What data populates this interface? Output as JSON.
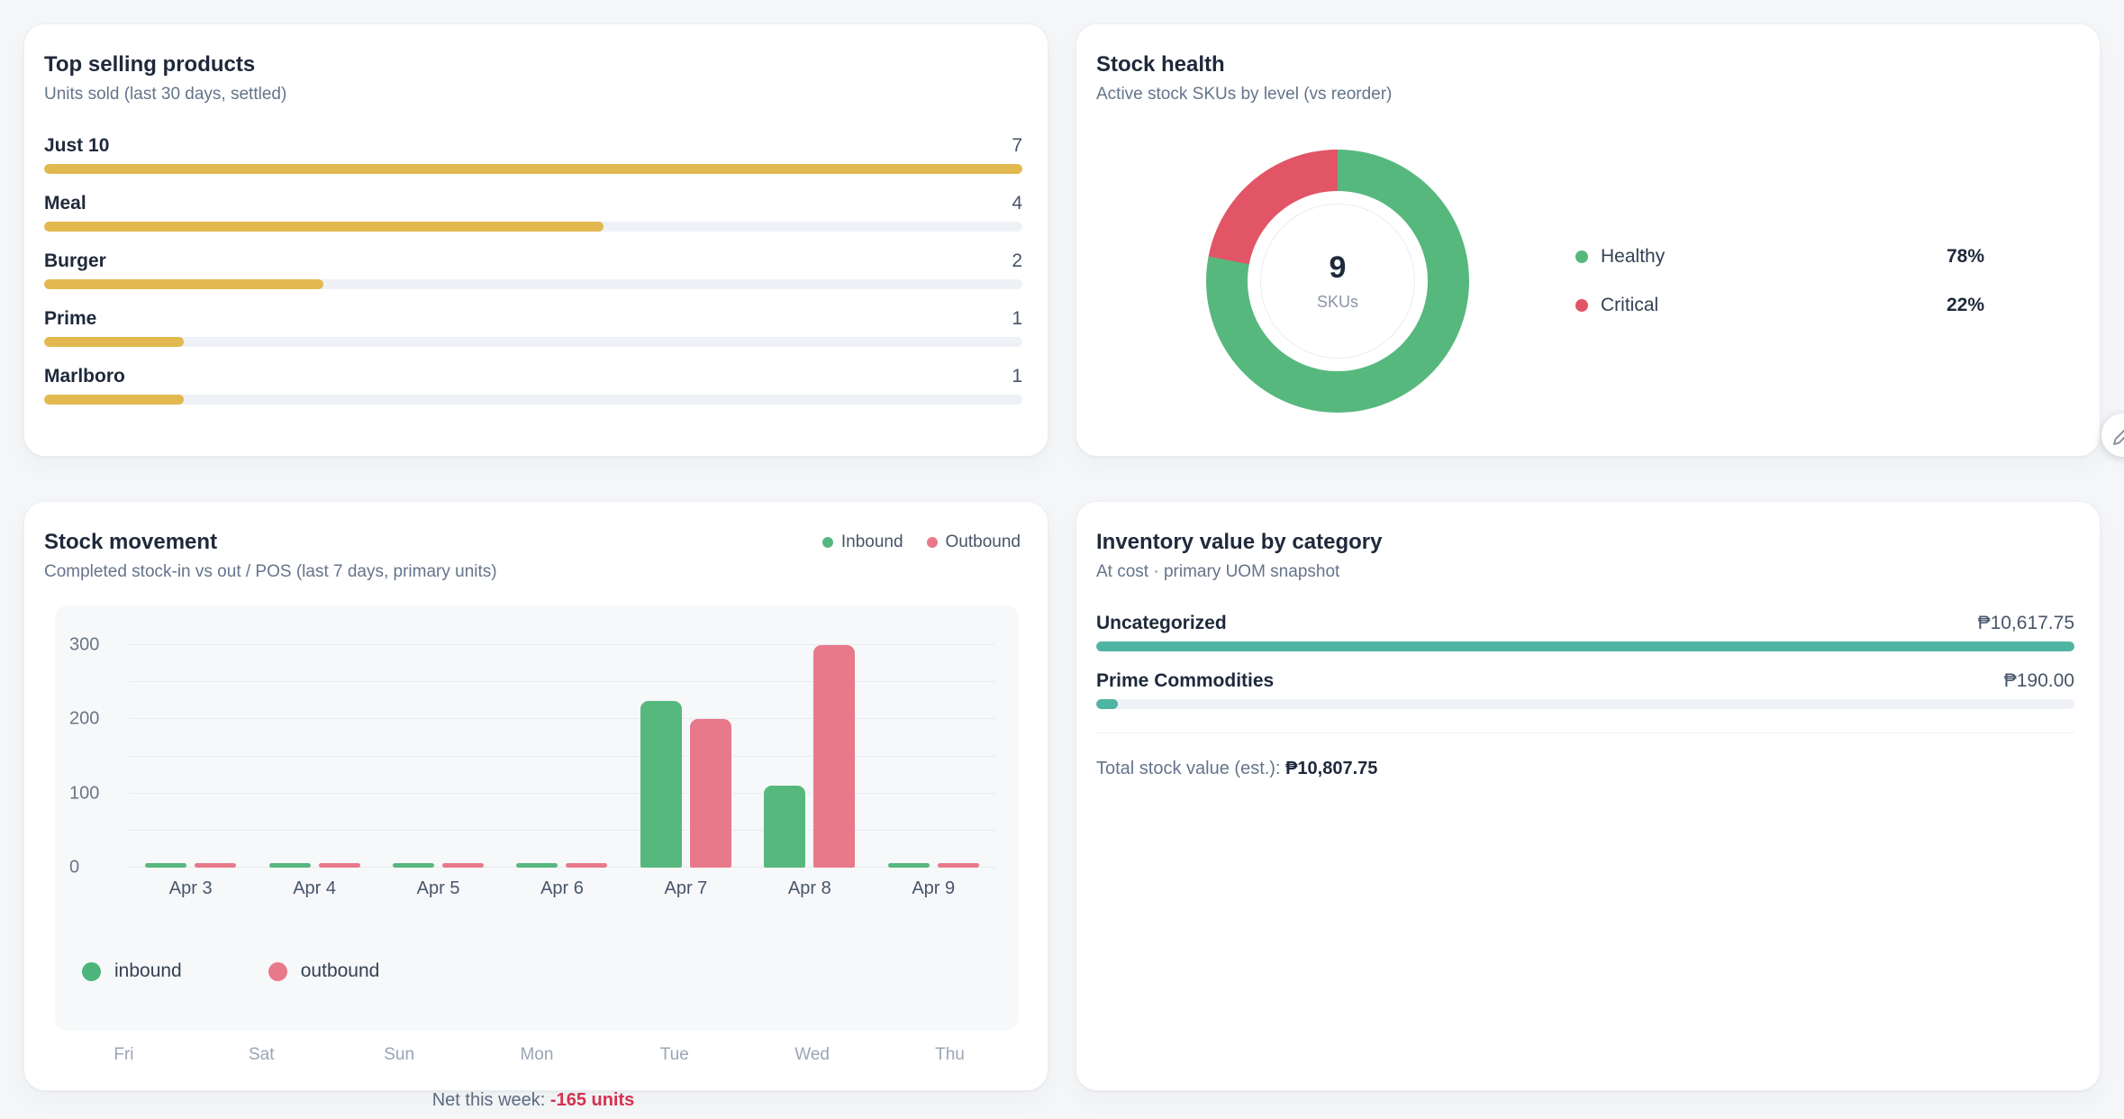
{
  "cards": {
    "top_products": {
      "title": "Top selling products",
      "subtitle": "Units sold (last 30 days, settled)",
      "bar_color": "#e2b94f",
      "track_color": "#eef1f5",
      "max": 7,
      "items": [
        {
          "label": "Just 10",
          "value": 7
        },
        {
          "label": "Meal",
          "value": 4
        },
        {
          "label": "Burger",
          "value": 2
        },
        {
          "label": "Prime",
          "value": 1
        },
        {
          "label": "Marlboro",
          "value": 1
        }
      ]
    },
    "stock_health": {
      "title": "Stock health",
      "subtitle": "Active stock SKUs by level (vs reorder)",
      "center_value": "9",
      "center_label": "SKUs",
      "segments": [
        {
          "label": "Healthy",
          "pct": 78,
          "color": "#57b87e"
        },
        {
          "label": "Critical",
          "pct": 22,
          "color": "#e25566"
        }
      ]
    },
    "stock_movement": {
      "title": "Stock movement",
      "subtitle": "Completed stock-in vs out / POS (last 7 days, primary units)",
      "legend_top": [
        {
          "label": "Inbound",
          "color": "#57b87e"
        },
        {
          "label": "Outbound",
          "color": "#e8798a"
        }
      ],
      "legend_bottom": [
        {
          "label": "inbound",
          "color": "#4db57c"
        },
        {
          "label": "outbound",
          "color": "#e8798a"
        }
      ],
      "inbound_color": "#57b87e",
      "outbound_color": "#e8798a",
      "yticks": [
        0,
        100,
        200,
        300
      ],
      "grid_step": 50,
      "ymax": 300,
      "categories": [
        "Apr 3",
        "Apr 4",
        "Apr 5",
        "Apr 6",
        "Apr 7",
        "Apr 8",
        "Apr 9"
      ],
      "weekdays": [
        "Fri",
        "Sat",
        "Sun",
        "Mon",
        "Tue",
        "Wed",
        "Thu"
      ],
      "inbound": [
        0,
        0,
        0,
        0,
        225,
        110,
        0
      ],
      "outbound": [
        0,
        0,
        0,
        0,
        200,
        300,
        0
      ],
      "net_label": "Net this week: ",
      "net_value": "-165 units"
    },
    "inventory_value": {
      "title": "Inventory value by category",
      "subtitle": "At cost · primary UOM snapshot",
      "bar_color": "#4fb5a2",
      "track_color": "#eef1f5",
      "items": [
        {
          "label": "Uncategorized",
          "value_label": "₱10,617.75",
          "pct": 100
        },
        {
          "label": "Prime Commodities",
          "value_label": "₱190.00",
          "pct": 2.2
        }
      ],
      "total_label": "Total stock value (est.): ",
      "total_value": "₱10,807.75"
    },
    "edit_button": {
      "icon": "pencil-icon"
    }
  },
  "chart_data": [
    {
      "type": "bar",
      "orientation": "horizontal",
      "title": "Top selling products",
      "subtitle": "Units sold (last 30 days, settled)",
      "categories": [
        "Just 10",
        "Meal",
        "Burger",
        "Prime",
        "Marlboro"
      ],
      "values": [
        7,
        4,
        2,
        1,
        1
      ],
      "xlim": [
        0,
        7
      ],
      "bar_color": "#e2b94f"
    },
    {
      "type": "pie",
      "title": "Stock health",
      "subtitle": "Active stock SKUs by level (vs reorder)",
      "labels": [
        "Healthy",
        "Critical"
      ],
      "values": [
        78,
        22
      ],
      "colors": [
        "#57b87e",
        "#e25566"
      ],
      "center_text": "9 SKUs",
      "donut": true,
      "legend_position": "right"
    },
    {
      "type": "bar",
      "title": "Stock movement",
      "subtitle": "Completed stock-in vs out / POS (last 7 days, primary units)",
      "categories": [
        "Apr 3",
        "Apr 4",
        "Apr 5",
        "Apr 6",
        "Apr 7",
        "Apr 8",
        "Apr 9"
      ],
      "series": [
        {
          "name": "inbound",
          "values": [
            0,
            0,
            0,
            0,
            225,
            110,
            0
          ],
          "color": "#57b87e"
        },
        {
          "name": "outbound",
          "values": [
            0,
            0,
            0,
            0,
            200,
            300,
            0
          ],
          "color": "#e8798a"
        }
      ],
      "ylim": [
        0,
        300
      ],
      "yticks": [
        0,
        100,
        200,
        300
      ],
      "grid": true,
      "legend_position": "bottom-left",
      "annotation": "Net this week: -165 units"
    },
    {
      "type": "bar",
      "orientation": "horizontal",
      "title": "Inventory value by category",
      "subtitle": "At cost · primary UOM snapshot",
      "categories": [
        "Uncategorized",
        "Prime Commodities"
      ],
      "values": [
        10617.75,
        190.0
      ],
      "value_labels": [
        "₱10,617.75",
        "₱190.00"
      ],
      "bar_color": "#4fb5a2",
      "total": "₱10,807.75"
    }
  ]
}
